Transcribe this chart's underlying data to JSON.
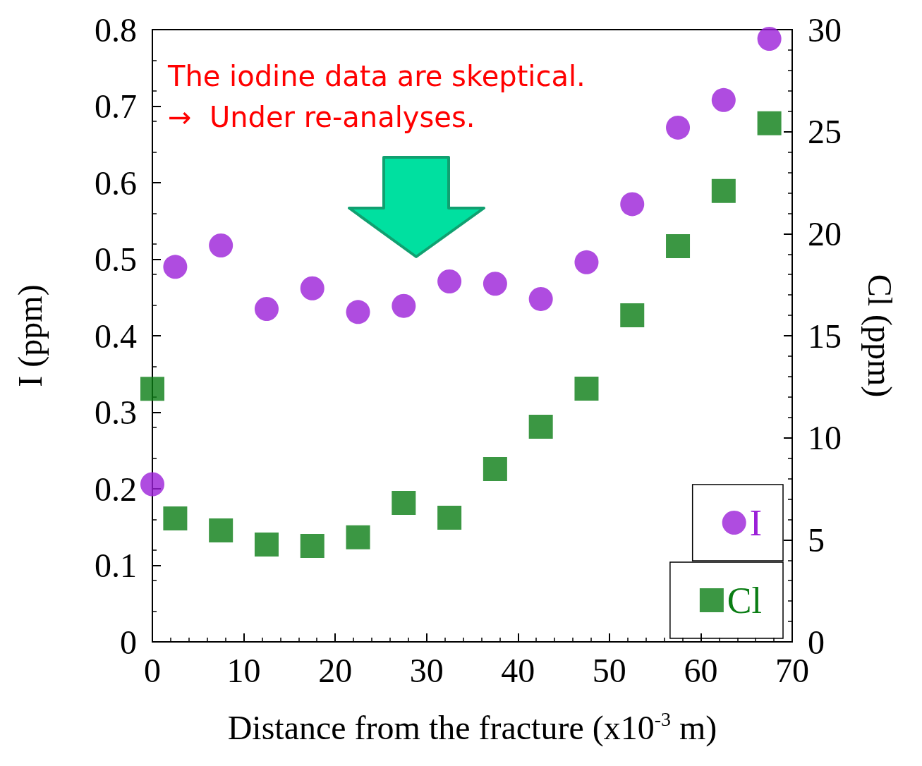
{
  "chart_data": {
    "type": "scatter",
    "xlabel": "Distance from the fracture (x10$^{-3}$ m)",
    "ylabel": "I (ppm)",
    "y2label": "Cl (ppm)",
    "annotations": [
      "The iodine data are skeptical.",
      "→  Under re-analyses."
    ],
    "x": [
      0,
      2.5,
      7.5,
      12.5,
      17.5,
      22.5,
      27.5,
      32.5,
      37.5,
      42.5,
      47.5,
      52.5,
      57.5,
      62.5,
      67.5
    ],
    "series": [
      {
        "name": "I",
        "color": "#9b1fd8",
        "marker": "circle",
        "values": [
          0.206,
          0.49,
          0.518,
          0.435,
          0.462,
          0.431,
          0.439,
          0.471,
          0.468,
          0.448,
          0.496,
          0.572,
          0.672,
          0.708,
          0.788
        ]
      },
      {
        "name": "Cl",
        "color": "#0a7d14",
        "marker": "square",
        "axis": "y2",
        "values": [
          12.4,
          6.05,
          5.46,
          4.77,
          4.7,
          5.12,
          6.81,
          6.08,
          8.47,
          10.54,
          12.41,
          16.0,
          19.39,
          22.09,
          25.41
        ]
      }
    ],
    "xlim": [
      0,
      70
    ],
    "xticks": [
      0,
      10,
      20,
      30,
      40,
      50,
      60,
      70
    ],
    "ylim": [
      0,
      0.8
    ],
    "yticks": [
      0,
      0.1,
      0.2,
      0.3,
      0.4,
      0.5,
      0.6,
      0.7,
      0.8
    ],
    "y2lim": [
      0,
      30
    ],
    "y2ticks": [
      0,
      5,
      10,
      15,
      20,
      25,
      30
    ],
    "legend": "bottom right",
    "grid": false
  }
}
